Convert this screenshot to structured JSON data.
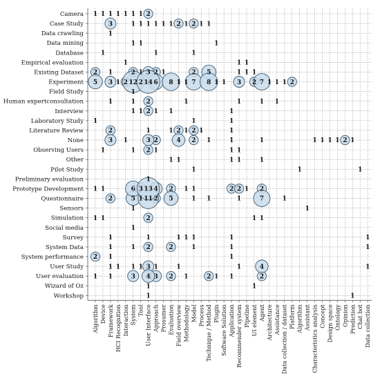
{
  "chart_data": {
    "type": "scatter",
    "subtype": "bubble-matrix",
    "grid": true,
    "y_categories": [
      "Camera",
      "Case Study",
      "Data crawling",
      "Data mining",
      "Database",
      "Empirical evaluation",
      "Existing Dataset",
      "Experiment",
      "Field Study",
      "Human expertconsultation",
      "Interview",
      "Laboratory Study",
      "Literature Review",
      "None",
      "Observing Users",
      "Other",
      "Pilot Study",
      "Preliminary evaluation",
      "Prototype Development",
      "Questionnaire",
      "Sensors",
      "Simulation",
      "Social media",
      "Survey",
      "System Data",
      "System performance",
      "User Study",
      "User evaluation",
      "Wizard of Oz",
      "Workshop"
    ],
    "x_categories": [
      "Algorithm",
      "Device",
      "Framework",
      "HCI Recognition",
      "Interaction",
      "System",
      "Tool",
      "User Interface",
      "Approach",
      "Prosumer",
      "Evaluation",
      "Field overview",
      "Methodology",
      "Model",
      "Process",
      "Technique / Method",
      "Plugin",
      "Software Solution",
      "Application",
      "Recommender system",
      "Pipeline",
      "UI element",
      "Agent",
      "Architecture",
      "Assistance",
      "Data collection / dataset",
      "Platform",
      "Algorithm",
      "Assistant",
      "Characteristics analysis",
      "Concept",
      "Design space",
      "Ontology",
      "Opinion",
      "Prediction",
      "Chat bot",
      "Data collection"
    ],
    "points": [
      {
        "y": 0,
        "x": 0,
        "v": 1
      },
      {
        "y": 0,
        "x": 1,
        "v": 1
      },
      {
        "y": 0,
        "x": 2,
        "v": 1
      },
      {
        "y": 0,
        "x": 3,
        "v": 1
      },
      {
        "y": 0,
        "x": 4,
        "v": 1
      },
      {
        "y": 0,
        "x": 5,
        "v": 1
      },
      {
        "y": 0,
        "x": 6,
        "v": 1
      },
      {
        "y": 0,
        "x": 7,
        "v": 2
      },
      {
        "y": 1,
        "x": 2,
        "v": 3
      },
      {
        "y": 1,
        "x": 5,
        "v": 1
      },
      {
        "y": 1,
        "x": 6,
        "v": 1
      },
      {
        "y": 1,
        "x": 7,
        "v": 1
      },
      {
        "y": 1,
        "x": 8,
        "v": 1
      },
      {
        "y": 1,
        "x": 9,
        "v": 1
      },
      {
        "y": 1,
        "x": 10,
        "v": 1
      },
      {
        "y": 1,
        "x": 11,
        "v": 2
      },
      {
        "y": 1,
        "x": 12,
        "v": 1
      },
      {
        "y": 1,
        "x": 13,
        "v": 2
      },
      {
        "y": 1,
        "x": 14,
        "v": 1
      },
      {
        "y": 1,
        "x": 15,
        "v": 1
      },
      {
        "y": 2,
        "x": 2,
        "v": 1
      },
      {
        "y": 3,
        "x": 5,
        "v": 1
      },
      {
        "y": 3,
        "x": 6,
        "v": 1
      },
      {
        "y": 3,
        "x": 16,
        "v": 1
      },
      {
        "y": 4,
        "x": 1,
        "v": 1
      },
      {
        "y": 4,
        "x": 8,
        "v": 1
      },
      {
        "y": 4,
        "x": 13,
        "v": 1
      },
      {
        "y": 5,
        "x": 4,
        "v": 1
      },
      {
        "y": 5,
        "x": 19,
        "v": 1
      },
      {
        "y": 5,
        "x": 20,
        "v": 1
      },
      {
        "y": 6,
        "x": 0,
        "v": 2
      },
      {
        "y": 6,
        "x": 2,
        "v": 1
      },
      {
        "y": 6,
        "x": 5,
        "v": 2
      },
      {
        "y": 6,
        "x": 6,
        "v": 1
      },
      {
        "y": 6,
        "x": 7,
        "v": 3
      },
      {
        "y": 6,
        "x": 8,
        "v": 2
      },
      {
        "y": 6,
        "x": 9,
        "v": 1
      },
      {
        "y": 6,
        "x": 13,
        "v": 2
      },
      {
        "y": 6,
        "x": 15,
        "v": 5
      },
      {
        "y": 6,
        "x": 19,
        "v": 1
      },
      {
        "y": 6,
        "x": 20,
        "v": 1
      },
      {
        "y": 6,
        "x": 21,
        "v": 1
      },
      {
        "y": 7,
        "x": 0,
        "v": 5
      },
      {
        "y": 7,
        "x": 2,
        "v": 3
      },
      {
        "y": 7,
        "x": 3,
        "v": 1
      },
      {
        "y": 7,
        "x": 4,
        "v": 2
      },
      {
        "y": 7,
        "x": 5,
        "v": 12
      },
      {
        "y": 7,
        "x": 6,
        "v": 2
      },
      {
        "y": 7,
        "x": 7,
        "v": 14
      },
      {
        "y": 7,
        "x": 8,
        "v": 6
      },
      {
        "y": 7,
        "x": 10,
        "v": 8
      },
      {
        "y": 7,
        "x": 11,
        "v": 1
      },
      {
        "y": 7,
        "x": 12,
        "v": 1
      },
      {
        "y": 7,
        "x": 13,
        "v": 7
      },
      {
        "y": 7,
        "x": 15,
        "v": 8
      },
      {
        "y": 7,
        "x": 16,
        "v": 1
      },
      {
        "y": 7,
        "x": 17,
        "v": 1
      },
      {
        "y": 7,
        "x": 19,
        "v": 3
      },
      {
        "y": 7,
        "x": 21,
        "v": 2
      },
      {
        "y": 7,
        "x": 22,
        "v": 7
      },
      {
        "y": 7,
        "x": 23,
        "v": 1
      },
      {
        "y": 7,
        "x": 24,
        "v": 1
      },
      {
        "y": 7,
        "x": 25,
        "v": 1
      },
      {
        "y": 7,
        "x": 26,
        "v": 2
      },
      {
        "y": 8,
        "x": 5,
        "v": 1
      },
      {
        "y": 9,
        "x": 2,
        "v": 1
      },
      {
        "y": 9,
        "x": 5,
        "v": 1
      },
      {
        "y": 9,
        "x": 7,
        "v": 2
      },
      {
        "y": 9,
        "x": 12,
        "v": 1
      },
      {
        "y": 9,
        "x": 19,
        "v": 1
      },
      {
        "y": 9,
        "x": 22,
        "v": 1
      },
      {
        "y": 9,
        "x": 24,
        "v": 1
      },
      {
        "y": 10,
        "x": 5,
        "v": 1
      },
      {
        "y": 10,
        "x": 6,
        "v": 1
      },
      {
        "y": 10,
        "x": 7,
        "v": 2
      },
      {
        "y": 10,
        "x": 8,
        "v": 1
      },
      {
        "y": 10,
        "x": 10,
        "v": 1
      },
      {
        "y": 10,
        "x": 18,
        "v": 1
      },
      {
        "y": 11,
        "x": 0,
        "v": 1
      },
      {
        "y": 11,
        "x": 13,
        "v": 1
      },
      {
        "y": 11,
        "x": 18,
        "v": 1
      },
      {
        "y": 12,
        "x": 2,
        "v": 2
      },
      {
        "y": 12,
        "x": 7,
        "v": 1
      },
      {
        "y": 12,
        "x": 10,
        "v": 1
      },
      {
        "y": 12,
        "x": 11,
        "v": 2
      },
      {
        "y": 12,
        "x": 12,
        "v": 1
      },
      {
        "y": 12,
        "x": 13,
        "v": 2
      },
      {
        "y": 12,
        "x": 14,
        "v": 1
      },
      {
        "y": 12,
        "x": 18,
        "v": 1
      },
      {
        "y": 13,
        "x": 2,
        "v": 3
      },
      {
        "y": 13,
        "x": 4,
        "v": 1
      },
      {
        "y": 13,
        "x": 7,
        "v": 3
      },
      {
        "y": 13,
        "x": 8,
        "v": 2
      },
      {
        "y": 13,
        "x": 11,
        "v": 4
      },
      {
        "y": 13,
        "x": 13,
        "v": 2
      },
      {
        "y": 13,
        "x": 15,
        "v": 1
      },
      {
        "y": 13,
        "x": 18,
        "v": 1
      },
      {
        "y": 13,
        "x": 22,
        "v": 1
      },
      {
        "y": 13,
        "x": 29,
        "v": 1
      },
      {
        "y": 13,
        "x": 30,
        "v": 1
      },
      {
        "y": 13,
        "x": 31,
        "v": 1
      },
      {
        "y": 13,
        "x": 32,
        "v": 1
      },
      {
        "y": 13,
        "x": 33,
        "v": 2
      },
      {
        "y": 13,
        "x": 34,
        "v": 1
      },
      {
        "y": 14,
        "x": 1,
        "v": 1
      },
      {
        "y": 14,
        "x": 5,
        "v": 1
      },
      {
        "y": 14,
        "x": 7,
        "v": 2
      },
      {
        "y": 14,
        "x": 8,
        "v": 1
      },
      {
        "y": 14,
        "x": 18,
        "v": 1
      },
      {
        "y": 14,
        "x": 19,
        "v": 1
      },
      {
        "y": 15,
        "x": 10,
        "v": 1
      },
      {
        "y": 15,
        "x": 11,
        "v": 1
      },
      {
        "y": 15,
        "x": 18,
        "v": 1
      },
      {
        "y": 15,
        "x": 19,
        "v": 1
      },
      {
        "y": 15,
        "x": 22,
        "v": 1
      },
      {
        "y": 16,
        "x": 13,
        "v": 1
      },
      {
        "y": 16,
        "x": 27,
        "v": 1
      },
      {
        "y": 16,
        "x": 35,
        "v": 1
      },
      {
        "y": 17,
        "x": 7,
        "v": 1
      },
      {
        "y": 18,
        "x": 0,
        "v": 1
      },
      {
        "y": 18,
        "x": 1,
        "v": 1
      },
      {
        "y": 18,
        "x": 5,
        "v": 6
      },
      {
        "y": 18,
        "x": 6,
        "v": 3
      },
      {
        "y": 18,
        "x": 7,
        "v": 13
      },
      {
        "y": 18,
        "x": 8,
        "v": 4
      },
      {
        "y": 18,
        "x": 10,
        "v": 2
      },
      {
        "y": 18,
        "x": 12,
        "v": 1
      },
      {
        "y": 18,
        "x": 13,
        "v": 1
      },
      {
        "y": 18,
        "x": 18,
        "v": 2
      },
      {
        "y": 18,
        "x": 19,
        "v": 2
      },
      {
        "y": 18,
        "x": 20,
        "v": 1
      },
      {
        "y": 18,
        "x": 22,
        "v": 2
      },
      {
        "y": 19,
        "x": 2,
        "v": 2
      },
      {
        "y": 19,
        "x": 5,
        "v": 5
      },
      {
        "y": 19,
        "x": 6,
        "v": 1
      },
      {
        "y": 19,
        "x": 7,
        "v": 11
      },
      {
        "y": 19,
        "x": 8,
        "v": 2
      },
      {
        "y": 19,
        "x": 10,
        "v": 5
      },
      {
        "y": 19,
        "x": 13,
        "v": 1
      },
      {
        "y": 19,
        "x": 15,
        "v": 1
      },
      {
        "y": 19,
        "x": 19,
        "v": 1
      },
      {
        "y": 19,
        "x": 22,
        "v": 7
      },
      {
        "y": 19,
        "x": 25,
        "v": 1
      },
      {
        "y": 20,
        "x": 5,
        "v": 1
      },
      {
        "y": 20,
        "x": 28,
        "v": 1
      },
      {
        "y": 21,
        "x": 0,
        "v": 1
      },
      {
        "y": 21,
        "x": 1,
        "v": 1
      },
      {
        "y": 21,
        "x": 7,
        "v": 2
      },
      {
        "y": 21,
        "x": 21,
        "v": 1
      },
      {
        "y": 21,
        "x": 22,
        "v": 1
      },
      {
        "y": 22,
        "x": 5,
        "v": 1
      },
      {
        "y": 23,
        "x": 2,
        "v": 1
      },
      {
        "y": 23,
        "x": 7,
        "v": 1
      },
      {
        "y": 23,
        "x": 11,
        "v": 1
      },
      {
        "y": 23,
        "x": 12,
        "v": 1
      },
      {
        "y": 23,
        "x": 13,
        "v": 1
      },
      {
        "y": 23,
        "x": 18,
        "v": 1
      },
      {
        "y": 23,
        "x": 36,
        "v": 1
      },
      {
        "y": 24,
        "x": 2,
        "v": 1
      },
      {
        "y": 24,
        "x": 5,
        "v": 1
      },
      {
        "y": 24,
        "x": 7,
        "v": 2
      },
      {
        "y": 24,
        "x": 10,
        "v": 2
      },
      {
        "y": 24,
        "x": 13,
        "v": 1
      },
      {
        "y": 24,
        "x": 18,
        "v": 1
      },
      {
        "y": 24,
        "x": 36,
        "v": 1
      },
      {
        "y": 25,
        "x": 0,
        "v": 2
      },
      {
        "y": 25,
        "x": 2,
        "v": 1
      },
      {
        "y": 25,
        "x": 18,
        "v": 1
      },
      {
        "y": 26,
        "x": 2,
        "v": 1
      },
      {
        "y": 26,
        "x": 3,
        "v": 1
      },
      {
        "y": 26,
        "x": 5,
        "v": 1
      },
      {
        "y": 26,
        "x": 6,
        "v": 1
      },
      {
        "y": 26,
        "x": 7,
        "v": 3
      },
      {
        "y": 26,
        "x": 8,
        "v": 1
      },
      {
        "y": 26,
        "x": 11,
        "v": 1
      },
      {
        "y": 26,
        "x": 19,
        "v": 1
      },
      {
        "y": 26,
        "x": 22,
        "v": 4
      },
      {
        "y": 26,
        "x": 36,
        "v": 1
      },
      {
        "y": 27,
        "x": 0,
        "v": 1
      },
      {
        "y": 27,
        "x": 2,
        "v": 1
      },
      {
        "y": 27,
        "x": 5,
        "v": 3
      },
      {
        "y": 27,
        "x": 7,
        "v": 4
      },
      {
        "y": 27,
        "x": 8,
        "v": 3
      },
      {
        "y": 27,
        "x": 10,
        "v": 2
      },
      {
        "y": 27,
        "x": 12,
        "v": 1
      },
      {
        "y": 27,
        "x": 15,
        "v": 2
      },
      {
        "y": 27,
        "x": 16,
        "v": 1
      },
      {
        "y": 27,
        "x": 18,
        "v": 1
      },
      {
        "y": 27,
        "x": 22,
        "v": 2
      },
      {
        "y": 28,
        "x": 7,
        "v": 1
      },
      {
        "y": 28,
        "x": 21,
        "v": 1
      },
      {
        "y": 29,
        "x": 7,
        "v": 1
      },
      {
        "y": 29,
        "x": 34,
        "v": 1
      }
    ]
  }
}
